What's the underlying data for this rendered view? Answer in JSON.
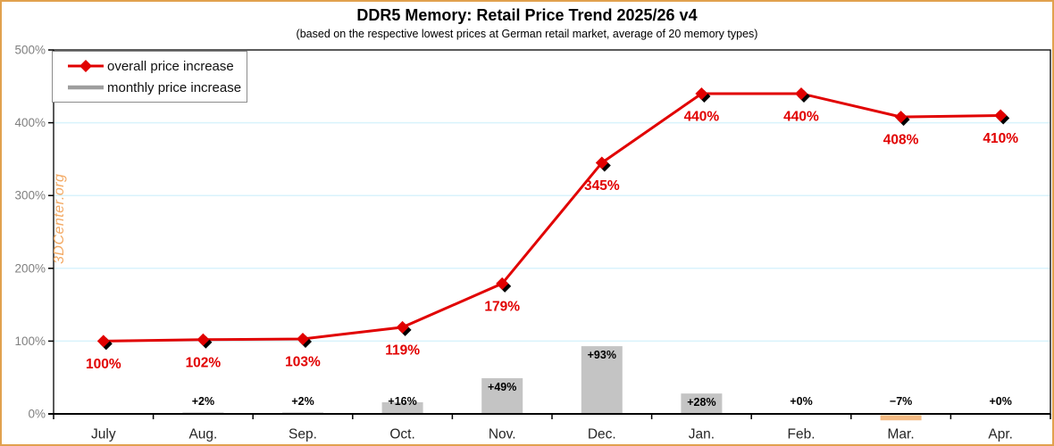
{
  "header": {
    "title": "DDR5 Memory: Retail Price Trend 2025/26 v4",
    "subtitle": "(based on the respective lowest prices at German retail market, average of 20 memory types)"
  },
  "watermark": "3DCenter.org",
  "legend": {
    "items": [
      {
        "label": "overall price increase",
        "swatch": "line-diamond",
        "color": "#e10000"
      },
      {
        "label": "monthly price increase",
        "swatch": "line",
        "color": "#9e9e9e"
      }
    ]
  },
  "chart_data": {
    "type": "combo",
    "categories": [
      "July",
      "Aug.",
      "Sep.",
      "Oct.",
      "Nov.",
      "Dec.",
      "Jan.",
      "Feb.",
      "Mar.",
      "Apr."
    ],
    "series": [
      {
        "name": "overall price increase",
        "type": "line",
        "marker": "diamond",
        "values": [
          100,
          102,
          103,
          119,
          179,
          345,
          440,
          440,
          408,
          410
        ],
        "labels": [
          "100%",
          "102%",
          "103%",
          "119%",
          "179%",
          "345%",
          "440%",
          "440%",
          "408%",
          "410%"
        ]
      },
      {
        "name": "monthly price increase",
        "type": "bar",
        "values": [
          null,
          2,
          2,
          16,
          49,
          93,
          28,
          0,
          -7,
          0
        ],
        "labels": [
          null,
          "+2%",
          "+2%",
          "+16%",
          "+49%",
          "+93%",
          "+28%",
          "+0%",
          "−7%",
          "+0%"
        ]
      }
    ],
    "title": "DDR5 Memory: Retail Price Trend 2025/26 v4",
    "xlabel": "",
    "ylabel": "",
    "ylim": [
      0,
      500
    ],
    "yticks": [
      "0%",
      "100%",
      "200%",
      "300%",
      "400%",
      "500%"
    ],
    "grid": true,
    "legend_position": "top-left"
  },
  "colors": {
    "line": "#e10000",
    "marker_shadow": "#000000",
    "bar_positive": "#c4c4c4",
    "bar_negative": "#f5bb83",
    "gridline": "#d9f3fc",
    "axis": "#000000",
    "y_label": "#808080",
    "x_label": "#262626",
    "bar_label": "#000000",
    "line_label": "#e10000",
    "frame_border": "#e1a14e",
    "watermark": "#f3a963",
    "legend_border": "#8c8c8c"
  }
}
